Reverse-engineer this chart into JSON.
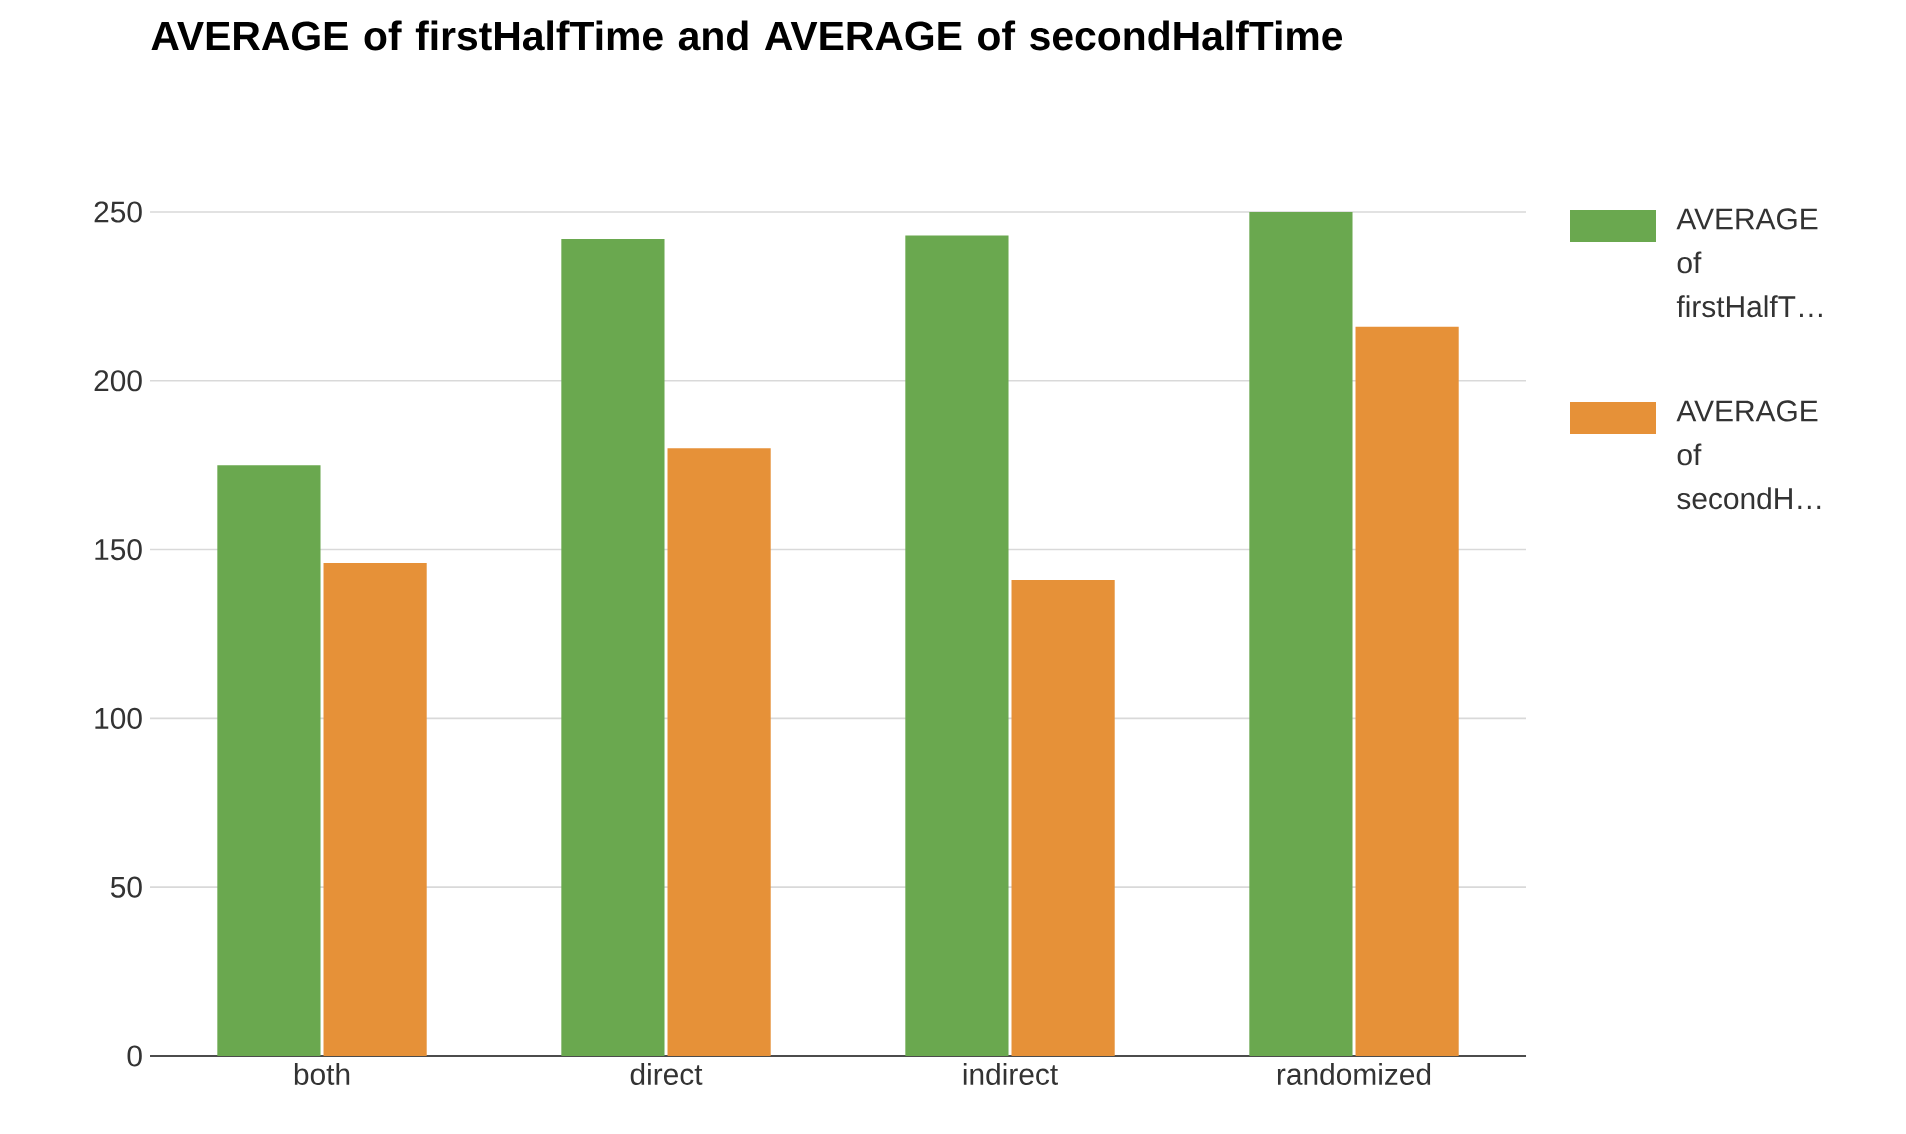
{
  "chart_data": {
    "type": "bar",
    "title": "AVERAGE of firstHalfTime and AVERAGE of secondHalfTime",
    "categories": [
      "both",
      "direct",
      "indirect",
      "randomized"
    ],
    "series": [
      {
        "name": "AVERAGE of firstHalfT…",
        "color": "#6aa84f",
        "values": [
          175,
          242,
          243,
          250
        ]
      },
      {
        "name": "AVERAGE of secondH…",
        "color": "#e69138",
        "values": [
          146,
          180,
          141,
          216
        ]
      }
    ],
    "ylim": [
      0,
      250
    ],
    "yticks": [
      0,
      50,
      100,
      150,
      200,
      250
    ],
    "grid": "y",
    "legend": "right"
  }
}
